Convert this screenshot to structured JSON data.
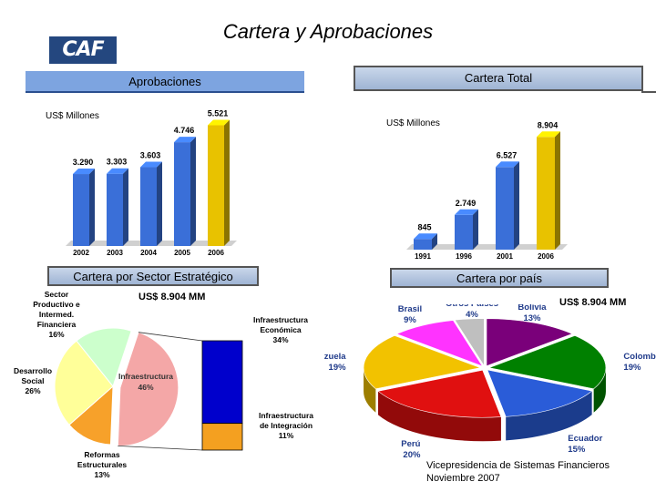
{
  "page": {
    "title": "Cartera y Aprobaciones"
  },
  "logo": {
    "text": "CAF"
  },
  "footer": {
    "line1": "Vicepresidencia de Sistemas Financieros",
    "line2": "Noviembre 2007"
  },
  "chart_data": [
    {
      "type": "bar",
      "title": "Aprobaciones",
      "ylabel": "US$ Millones",
      "categories": [
        "2002",
        "2003",
        "2004",
        "2005",
        "2006"
      ],
      "values": [
        3290,
        3303,
        3603,
        4746,
        5521
      ],
      "value_labels": [
        "3.290",
        "3.303",
        "3.603",
        "4.746",
        "5.521"
      ],
      "highlight_last": true,
      "colors": {
        "bar": "#3a6fd8",
        "last": "#e8c200"
      },
      "ylim": [
        0,
        6000
      ]
    },
    {
      "type": "bar",
      "title": "Cartera Total",
      "ylabel": "US$ Millones",
      "categories": [
        "1991",
        "1996",
        "2001",
        "2006"
      ],
      "values": [
        845,
        2749,
        6527,
        8904
      ],
      "value_labels": [
        "845",
        "2.749",
        "6.527",
        "8.904"
      ],
      "highlight_last": true,
      "colors": {
        "bar": "#3a6fd8",
        "last": "#e8c200"
      },
      "ylim": [
        0,
        9500
      ]
    },
    {
      "type": "pie",
      "title": "Cartera por Sector Estratégico",
      "total_label": "US$ 8.904 MM",
      "slices": [
        {
          "label": "Infraestructura",
          "pct_label": "46%",
          "value": 46,
          "color": "#f4a7a7"
        },
        {
          "label": "Reformas Estructurales",
          "pct_label": "13%",
          "value": 13,
          "color": "#f7a12a"
        },
        {
          "label": "Desarrollo Social",
          "pct_label": "26%",
          "value": 26,
          "color": "#ffff99"
        },
        {
          "label": "Sector Productivo e Intermed. Financiera",
          "pct_label": "16%",
          "value": 16,
          "color": "#ccffcc"
        }
      ],
      "breakdown": {
        "segments": [
          {
            "label": "Infraestructura Económica",
            "pct_label": "34%",
            "value": 34,
            "color": "#0000cc"
          },
          {
            "label": "Infraestructura de Integración",
            "pct_label": "11%",
            "value": 11,
            "color": "#f4a020"
          }
        ]
      },
      "annotations": {
        "productivo": [
          "Sector",
          "Productivo e",
          "Intermed.",
          "Financiera",
          "16%"
        ],
        "social": [
          "Desarrollo",
          "Social",
          "26%"
        ],
        "reformas": [
          "Reformas",
          "Estructurales",
          "13%"
        ],
        "infra": [
          "Infraestructura",
          "46%"
        ],
        "economica": [
          "Infraestructura",
          "Económica",
          "34%"
        ],
        "integracion": [
          "Infraestructura",
          "de Integración",
          "11%"
        ]
      }
    },
    {
      "type": "pie",
      "title": "Cartera por país",
      "total_label": "US$ 8.904 MM",
      "slices": [
        {
          "label": "Bolivia",
          "pct_label": "13%",
          "value": 13,
          "color": "#7a007a"
        },
        {
          "label": "Colombia",
          "pct_label": "19%",
          "value": 19,
          "color": "#008000"
        },
        {
          "label": "Ecuador",
          "pct_label": "15%",
          "value": 15,
          "color": "#2a5cd8"
        },
        {
          "label": "Perú",
          "pct_label": "20%",
          "value": 20,
          "color": "#e01010"
        },
        {
          "label": "Venezuela",
          "pct_label": "19%",
          "value": 19,
          "color": "#f2c200"
        },
        {
          "label": "Brasil",
          "pct_label": "9%",
          "value": 9,
          "color": "#ff33ff"
        },
        {
          "label": "Otros Países",
          "pct_label": "4%",
          "value": 4,
          "color": "#bfbfbf"
        }
      ]
    }
  ]
}
